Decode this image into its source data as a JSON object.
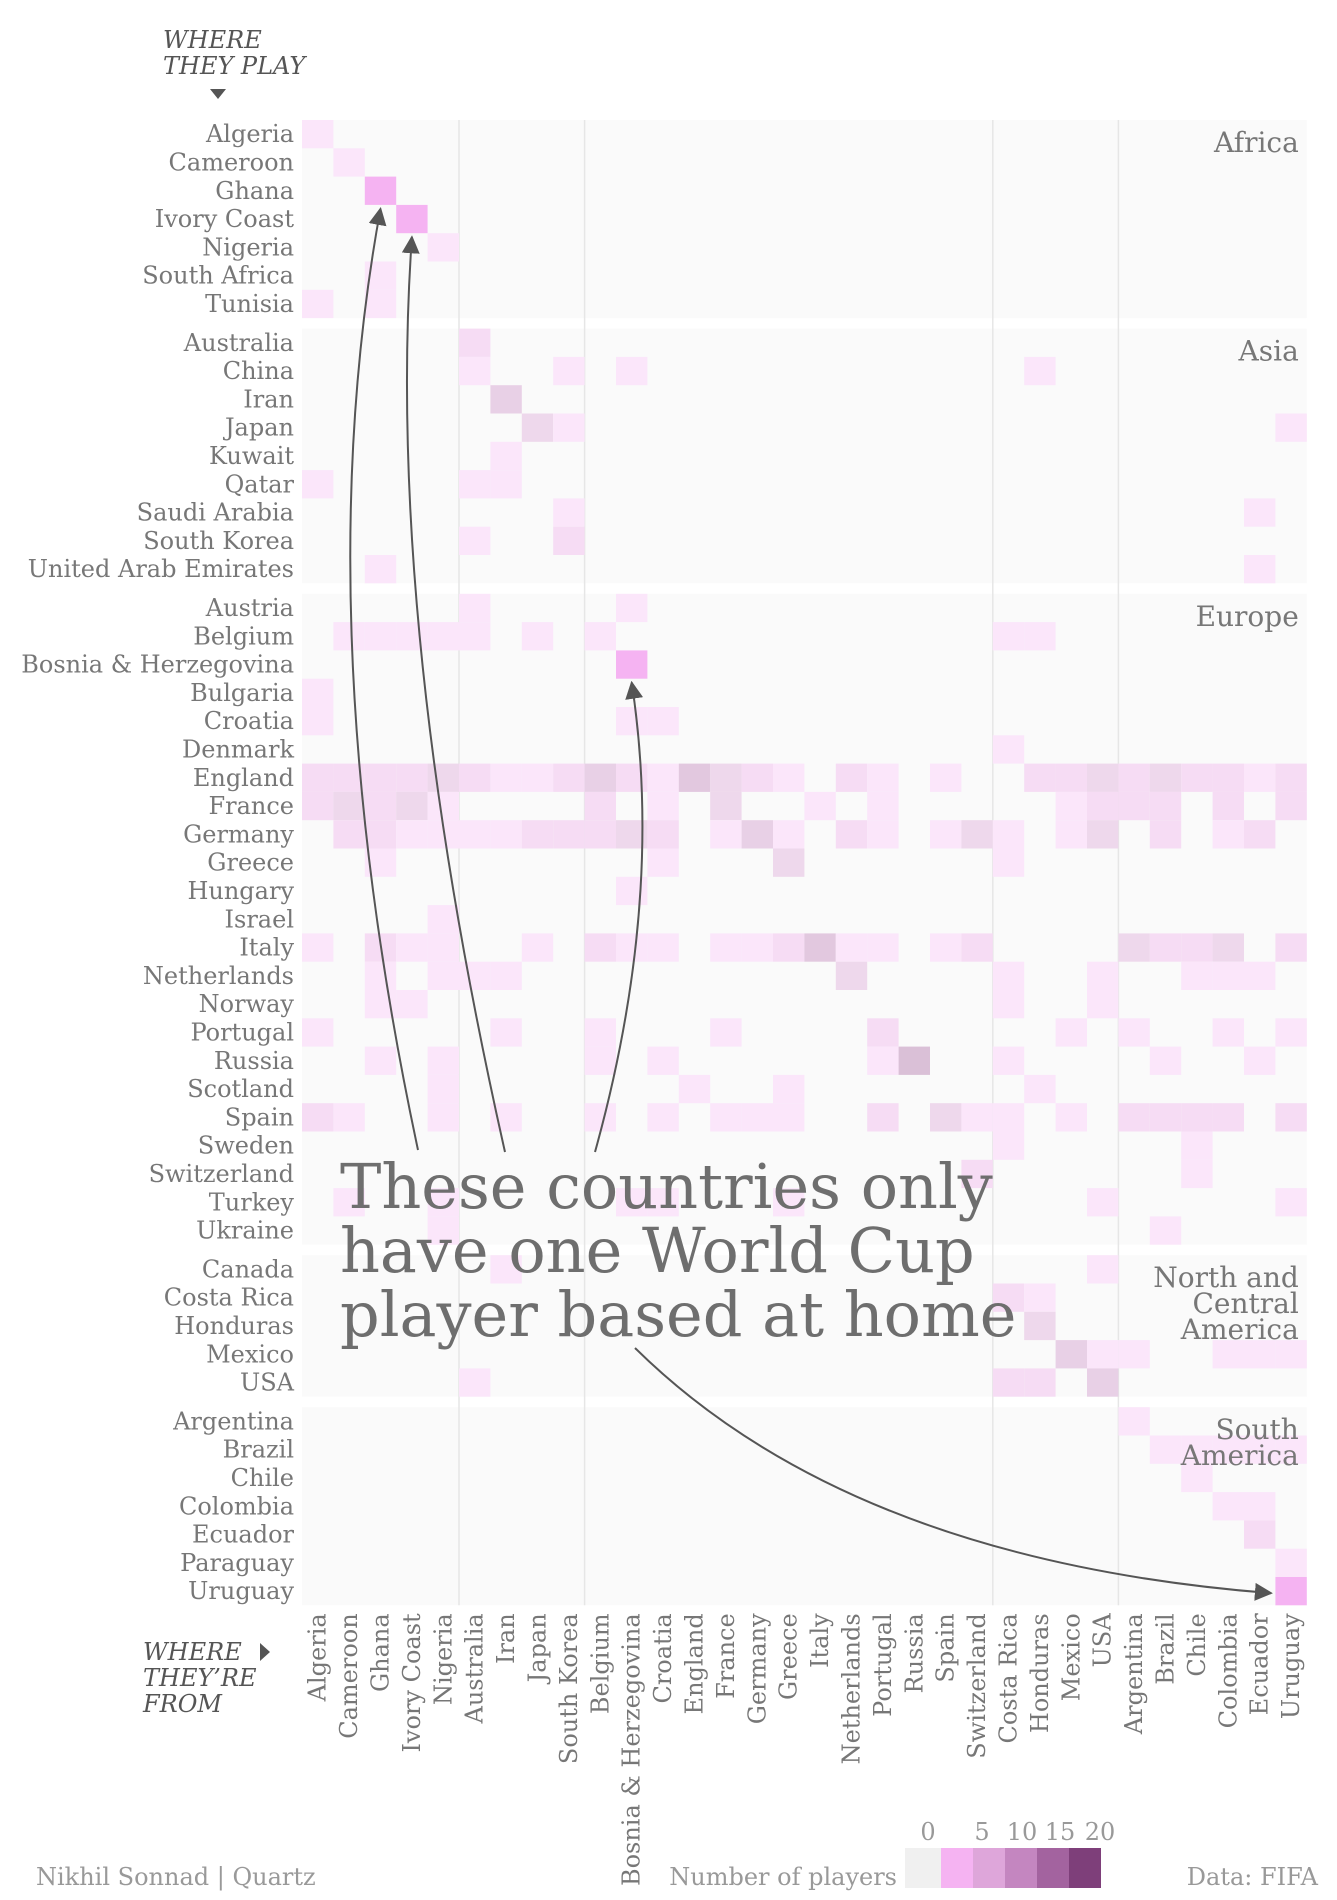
{
  "chart_data": {
    "type": "heatmap",
    "title": "",
    "y_axis_title": [
      "WHERE",
      "THEY PLAY"
    ],
    "x_axis_title": [
      "WHERE",
      "THEY’RE",
      "FROM"
    ],
    "rows": [
      "Algeria",
      "Cameroon",
      "Ghana",
      "Ivory Coast",
      "Nigeria",
      "South Africa",
      "Tunisia",
      "Australia",
      "China",
      "Iran",
      "Japan",
      "Kuwait",
      "Qatar",
      "Saudi Arabia",
      "South Korea",
      "United Arab Emirates",
      "Austria",
      "Belgium",
      "Bosnia & Herzegovina",
      "Bulgaria",
      "Croatia",
      "Denmark",
      "England",
      "France",
      "Germany",
      "Greece",
      "Hungary",
      "Israel",
      "Italy",
      "Netherlands",
      "Norway",
      "Portugal",
      "Russia",
      "Scotland",
      "Spain",
      "Sweden",
      "Switzerland",
      "Turkey",
      "Ukraine",
      "Canada",
      "Costa Rica",
      "Honduras",
      "Mexico",
      "USA",
      "Argentina",
      "Brazil",
      "Chile",
      "Colombia",
      "Ecuador",
      "Paraguay",
      "Uruguay"
    ],
    "row_groups": [
      {
        "label": [
          "Africa"
        ],
        "size": 7
      },
      {
        "label": [
          "Asia"
        ],
        "size": 9
      },
      {
        "label": [
          "Europe"
        ],
        "size": 23
      },
      {
        "label": [
          "North and",
          "Central",
          "America"
        ],
        "size": 5
      },
      {
        "label": [
          "South",
          "America"
        ],
        "size": 7
      }
    ],
    "columns": [
      "Algeria",
      "Cameroon",
      "Ghana",
      "Ivory Coast",
      "Nigeria",
      "Australia",
      "Iran",
      "Japan",
      "South Korea",
      "Belgium",
      "Bosnia & Herzegovina",
      "Croatia",
      "England",
      "France",
      "Germany",
      "Greece",
      "Italy",
      "Netherlands",
      "Portugal",
      "Russia",
      "Spain",
      "Switzerland",
      "Costa Rica",
      "Honduras",
      "Mexico",
      "USA",
      "Argentina",
      "Brazil",
      "Chile",
      "Colombia",
      "Ecuador",
      "Uruguay"
    ],
    "column_group_sizes": [
      5,
      4,
      13,
      4,
      6
    ],
    "cells": [
      [
        "Algeria",
        "Algeria",
        1
      ],
      [
        "Cameroon",
        "Cameroon",
        1
      ],
      [
        "Ghana",
        "Ghana",
        1
      ],
      [
        "Ivory Coast",
        "Ivory Coast",
        1
      ],
      [
        "Nigeria",
        "Nigeria",
        1
      ],
      [
        "South Africa",
        "Ghana",
        1
      ],
      [
        "Tunisia",
        "Algeria",
        1
      ],
      [
        "Tunisia",
        "Ghana",
        1
      ],
      [
        "Australia",
        "Australia",
        2
      ],
      [
        "China",
        "Australia",
        1
      ],
      [
        "China",
        "South Korea",
        1
      ],
      [
        "China",
        "Bosnia & Herzegovina",
        1
      ],
      [
        "China",
        "Honduras",
        1
      ],
      [
        "Iran",
        "Iran",
        4
      ],
      [
        "Japan",
        "Japan",
        3
      ],
      [
        "Japan",
        "South Korea",
        1
      ],
      [
        "Japan",
        "Uruguay",
        1
      ],
      [
        "Kuwait",
        "Iran",
        1
      ],
      [
        "Qatar",
        "Algeria",
        1
      ],
      [
        "Qatar",
        "Australia",
        1
      ],
      [
        "Qatar",
        "Iran",
        1
      ],
      [
        "Saudi Arabia",
        "South Korea",
        1
      ],
      [
        "Saudi Arabia",
        "Ecuador",
        1
      ],
      [
        "South Korea",
        "Australia",
        1
      ],
      [
        "South Korea",
        "South Korea",
        2
      ],
      [
        "United Arab Emirates",
        "Ghana",
        1
      ],
      [
        "United Arab Emirates",
        "Ecuador",
        1
      ],
      [
        "Austria",
        "Australia",
        1
      ],
      [
        "Austria",
        "Bosnia & Herzegovina",
        1
      ],
      [
        "Belgium",
        "Cameroon",
        1
      ],
      [
        "Belgium",
        "Ghana",
        1
      ],
      [
        "Belgium",
        "Ivory Coast",
        1
      ],
      [
        "Belgium",
        "Nigeria",
        1
      ],
      [
        "Belgium",
        "Australia",
        1
      ],
      [
        "Belgium",
        "Japan",
        1
      ],
      [
        "Belgium",
        "Belgium",
        1
      ],
      [
        "Belgium",
        "Costa Rica",
        1
      ],
      [
        "Belgium",
        "Honduras",
        1
      ],
      [
        "Bosnia & Herzegovina",
        "Bosnia & Herzegovina",
        1
      ],
      [
        "Bulgaria",
        "Algeria",
        1
      ],
      [
        "Croatia",
        "Algeria",
        1
      ],
      [
        "Croatia",
        "Bosnia & Herzegovina",
        1
      ],
      [
        "Croatia",
        "Croatia",
        1
      ],
      [
        "Denmark",
        "Costa Rica",
        1
      ],
      [
        "England",
        "Algeria",
        2
      ],
      [
        "England",
        "Cameroon",
        2
      ],
      [
        "England",
        "Ghana",
        2
      ],
      [
        "England",
        "Ivory Coast",
        2
      ],
      [
        "England",
        "Nigeria",
        3
      ],
      [
        "England",
        "Australia",
        2
      ],
      [
        "England",
        "Iran",
        1
      ],
      [
        "England",
        "Japan",
        1
      ],
      [
        "England",
        "South Korea",
        2
      ],
      [
        "England",
        "Belgium",
        4
      ],
      [
        "England",
        "Bosnia & Herzegovina",
        2
      ],
      [
        "England",
        "Croatia",
        1
      ],
      [
        "England",
        "England",
        5
      ],
      [
        "England",
        "France",
        3
      ],
      [
        "England",
        "Germany",
        2
      ],
      [
        "England",
        "Greece",
        1
      ],
      [
        "England",
        "Netherlands",
        2
      ],
      [
        "England",
        "Portugal",
        1
      ],
      [
        "England",
        "Spain",
        1
      ],
      [
        "England",
        "Honduras",
        2
      ],
      [
        "England",
        "Mexico",
        2
      ],
      [
        "England",
        "USA",
        3
      ],
      [
        "England",
        "Argentina",
        2
      ],
      [
        "England",
        "Brazil",
        3
      ],
      [
        "England",
        "Chile",
        2
      ],
      [
        "England",
        "Colombia",
        2
      ],
      [
        "England",
        "Ecuador",
        1
      ],
      [
        "England",
        "Uruguay",
        2
      ],
      [
        "France",
        "Algeria",
        2
      ],
      [
        "France",
        "Cameroon",
        3
      ],
      [
        "France",
        "Ghana",
        2
      ],
      [
        "France",
        "Ivory Coast",
        3
      ],
      [
        "France",
        "Nigeria",
        1
      ],
      [
        "France",
        "Belgium",
        2
      ],
      [
        "France",
        "Croatia",
        1
      ],
      [
        "France",
        "France",
        3
      ],
      [
        "France",
        "Italy",
        1
      ],
      [
        "France",
        "Portugal",
        1
      ],
      [
        "France",
        "Mexico",
        1
      ],
      [
        "France",
        "USA",
        2
      ],
      [
        "France",
        "Argentina",
        2
      ],
      [
        "France",
        "Brazil",
        2
      ],
      [
        "France",
        "Colombia",
        2
      ],
      [
        "France",
        "Uruguay",
        2
      ],
      [
        "Germany",
        "Cameroon",
        2
      ],
      [
        "Germany",
        "Ghana",
        2
      ],
      [
        "Germany",
        "Ivory Coast",
        1
      ],
      [
        "Germany",
        "Nigeria",
        1
      ],
      [
        "Germany",
        "Australia",
        1
      ],
      [
        "Germany",
        "Iran",
        1
      ],
      [
        "Germany",
        "Japan",
        2
      ],
      [
        "Germany",
        "South Korea",
        2
      ],
      [
        "Germany",
        "Belgium",
        2
      ],
      [
        "Germany",
        "Bosnia & Herzegovina",
        3
      ],
      [
        "Germany",
        "Croatia",
        2
      ],
      [
        "Germany",
        "France",
        1
      ],
      [
        "Germany",
        "Germany",
        4
      ],
      [
        "Germany",
        "Greece",
        1
      ],
      [
        "Germany",
        "Netherlands",
        2
      ],
      [
        "Germany",
        "Portugal",
        1
      ],
      [
        "Germany",
        "Spain",
        1
      ],
      [
        "Germany",
        "Switzerland",
        3
      ],
      [
        "Germany",
        "Costa Rica",
        1
      ],
      [
        "Germany",
        "Mexico",
        1
      ],
      [
        "Germany",
        "USA",
        3
      ],
      [
        "Germany",
        "Brazil",
        2
      ],
      [
        "Germany",
        "Colombia",
        1
      ],
      [
        "Germany",
        "Ecuador",
        2
      ],
      [
        "Greece",
        "Ghana",
        1
      ],
      [
        "Greece",
        "Croatia",
        1
      ],
      [
        "Greece",
        "Greece",
        3
      ],
      [
        "Greece",
        "Costa Rica",
        1
      ],
      [
        "Hungary",
        "Bosnia & Herzegovina",
        1
      ],
      [
        "Israel",
        "Nigeria",
        1
      ],
      [
        "Italy",
        "Algeria",
        1
      ],
      [
        "Italy",
        "Ghana",
        2
      ],
      [
        "Italy",
        "Ivory Coast",
        1
      ],
      [
        "Italy",
        "Nigeria",
        1
      ],
      [
        "Italy",
        "Japan",
        1
      ],
      [
        "Italy",
        "Belgium",
        2
      ],
      [
        "Italy",
        "Bosnia & Herzegovina",
        1
      ],
      [
        "Italy",
        "Croatia",
        1
      ],
      [
        "Italy",
        "France",
        1
      ],
      [
        "Italy",
        "Germany",
        1
      ],
      [
        "Italy",
        "Greece",
        2
      ],
      [
        "Italy",
        "Italy",
        5
      ],
      [
        "Italy",
        "Netherlands",
        1
      ],
      [
        "Italy",
        "Portugal",
        1
      ],
      [
        "Italy",
        "Spain",
        1
      ],
      [
        "Italy",
        "Switzerland",
        2
      ],
      [
        "Italy",
        "Argentina",
        3
      ],
      [
        "Italy",
        "Brazil",
        2
      ],
      [
        "Italy",
        "Chile",
        2
      ],
      [
        "Italy",
        "Colombia",
        3
      ],
      [
        "Italy",
        "Uruguay",
        2
      ],
      [
        "Netherlands",
        "Ghana",
        1
      ],
      [
        "Netherlands",
        "Nigeria",
        1
      ],
      [
        "Netherlands",
        "Australia",
        1
      ],
      [
        "Netherlands",
        "Iran",
        1
      ],
      [
        "Netherlands",
        "Netherlands",
        3
      ],
      [
        "Netherlands",
        "Costa Rica",
        1
      ],
      [
        "Netherlands",
        "USA",
        1
      ],
      [
        "Netherlands",
        "Chile",
        1
      ],
      [
        "Netherlands",
        "Colombia",
        1
      ],
      [
        "Netherlands",
        "Ecuador",
        1
      ],
      [
        "Norway",
        "Ghana",
        1
      ],
      [
        "Norway",
        "Ivory Coast",
        1
      ],
      [
        "Norway",
        "Costa Rica",
        1
      ],
      [
        "Norway",
        "USA",
        1
      ],
      [
        "Portugal",
        "Algeria",
        1
      ],
      [
        "Portugal",
        "Iran",
        1
      ],
      [
        "Portugal",
        "Belgium",
        1
      ],
      [
        "Portugal",
        "France",
        1
      ],
      [
        "Portugal",
        "Portugal",
        2
      ],
      [
        "Portugal",
        "Mexico",
        1
      ],
      [
        "Portugal",
        "Argentina",
        1
      ],
      [
        "Portugal",
        "Colombia",
        1
      ],
      [
        "Portugal",
        "Uruguay",
        1
      ],
      [
        "Russia",
        "Ghana",
        1
      ],
      [
        "Russia",
        "Nigeria",
        1
      ],
      [
        "Russia",
        "Belgium",
        1
      ],
      [
        "Russia",
        "Croatia",
        1
      ],
      [
        "Russia",
        "Portugal",
        1
      ],
      [
        "Russia",
        "Russia",
        6
      ],
      [
        "Russia",
        "Costa Rica",
        1
      ],
      [
        "Russia",
        "Brazil",
        1
      ],
      [
        "Russia",
        "Ecuador",
        1
      ],
      [
        "Scotland",
        "Nigeria",
        1
      ],
      [
        "Scotland",
        "England",
        1
      ],
      [
        "Scotland",
        "Greece",
        1
      ],
      [
        "Scotland",
        "Honduras",
        1
      ],
      [
        "Spain",
        "Algeria",
        2
      ],
      [
        "Spain",
        "Cameroon",
        1
      ],
      [
        "Spain",
        "Nigeria",
        1
      ],
      [
        "Spain",
        "Iran",
        1
      ],
      [
        "Spain",
        "Belgium",
        1
      ],
      [
        "Spain",
        "Croatia",
        1
      ],
      [
        "Spain",
        "France",
        1
      ],
      [
        "Spain",
        "Germany",
        1
      ],
      [
        "Spain",
        "Greece",
        1
      ],
      [
        "Spain",
        "Portugal",
        2
      ],
      [
        "Spain",
        "Spain",
        3
      ],
      [
        "Spain",
        "Switzerland",
        1
      ],
      [
        "Spain",
        "Costa Rica",
        1
      ],
      [
        "Spain",
        "Mexico",
        1
      ],
      [
        "Spain",
        "Argentina",
        2
      ],
      [
        "Spain",
        "Brazil",
        2
      ],
      [
        "Spain",
        "Chile",
        2
      ],
      [
        "Spain",
        "Colombia",
        2
      ],
      [
        "Spain",
        "Uruguay",
        2
      ],
      [
        "Sweden",
        "Costa Rica",
        1
      ],
      [
        "Sweden",
        "Chile",
        1
      ],
      [
        "Switzerland",
        "Switzerland",
        2
      ],
      [
        "Switzerland",
        "Chile",
        1
      ],
      [
        "Turkey",
        "Cameroon",
        1
      ],
      [
        "Turkey",
        "Nigeria",
        1
      ],
      [
        "Turkey",
        "Bosnia & Herzegovina",
        1
      ],
      [
        "Turkey",
        "Croatia",
        1
      ],
      [
        "Turkey",
        "Greece",
        1
      ],
      [
        "Turkey",
        "USA",
        1
      ],
      [
        "Turkey",
        "Uruguay",
        1
      ],
      [
        "Ukraine",
        "Nigeria",
        1
      ],
      [
        "Ukraine",
        "Brazil",
        1
      ],
      [
        "Canada",
        "USA",
        1
      ],
      [
        "Canada",
        "Iran",
        1
      ],
      [
        "Costa Rica",
        "Costa Rica",
        2
      ],
      [
        "Costa Rica",
        "Honduras",
        1
      ],
      [
        "Honduras",
        "Honduras",
        3
      ],
      [
        "Mexico",
        "Mexico",
        4
      ],
      [
        "Mexico",
        "USA",
        1
      ],
      [
        "Mexico",
        "Argentina",
        1
      ],
      [
        "Mexico",
        "Colombia",
        1
      ],
      [
        "Mexico",
        "Ecuador",
        1
      ],
      [
        "Mexico",
        "Uruguay",
        1
      ],
      [
        "USA",
        "Australia",
        1
      ],
      [
        "USA",
        "Costa Rica",
        2
      ],
      [
        "USA",
        "Honduras",
        2
      ],
      [
        "USA",
        "USA",
        4
      ],
      [
        "Argentina",
        "Argentina",
        1
      ],
      [
        "Brazil",
        "Brazil",
        1
      ],
      [
        "Brazil",
        "Chile",
        1
      ],
      [
        "Brazil",
        "Colombia",
        1
      ],
      [
        "Brazil",
        "Ecuador",
        1
      ],
      [
        "Brazil",
        "Uruguay",
        1
      ],
      [
        "Chile",
        "Chile",
        1
      ],
      [
        "Colombia",
        "Colombia",
        1
      ],
      [
        "Colombia",
        "Ecuador",
        1
      ],
      [
        "Ecuador",
        "Ecuador",
        2
      ],
      [
        "Paraguay",
        "Uruguay",
        1
      ],
      [
        "Uruguay",
        "Uruguay",
        1
      ]
    ],
    "highlighted_cells": [
      [
        "Ghana",
        "Ghana"
      ],
      [
        "Ivory Coast",
        "Ivory Coast"
      ],
      [
        "Bosnia & Herzegovina",
        "Bosnia & Herzegovina"
      ],
      [
        "Uruguay",
        "Uruguay"
      ]
    ],
    "annotation": [
      "These countries only",
      "have one World Cup",
      "player based at home"
    ],
    "legend": {
      "title": "Number of players",
      "ticks": [
        0,
        5,
        10,
        15,
        20
      ],
      "colors": [
        "#f0f0f0",
        "#f5b3f2",
        "#dea6da",
        "#c486c0",
        "#a3639f",
        "#7e3f7a"
      ]
    },
    "colors": {
      "highlight": "#f5b3f2",
      "panel_background": "#fafafa",
      "gridline": "#e6e6e6",
      "text": "#777777",
      "arrow": "#555555"
    }
  },
  "footer": {
    "credit": "Nikhil Sonnad | Quartz",
    "source": "Data: FIFA"
  }
}
